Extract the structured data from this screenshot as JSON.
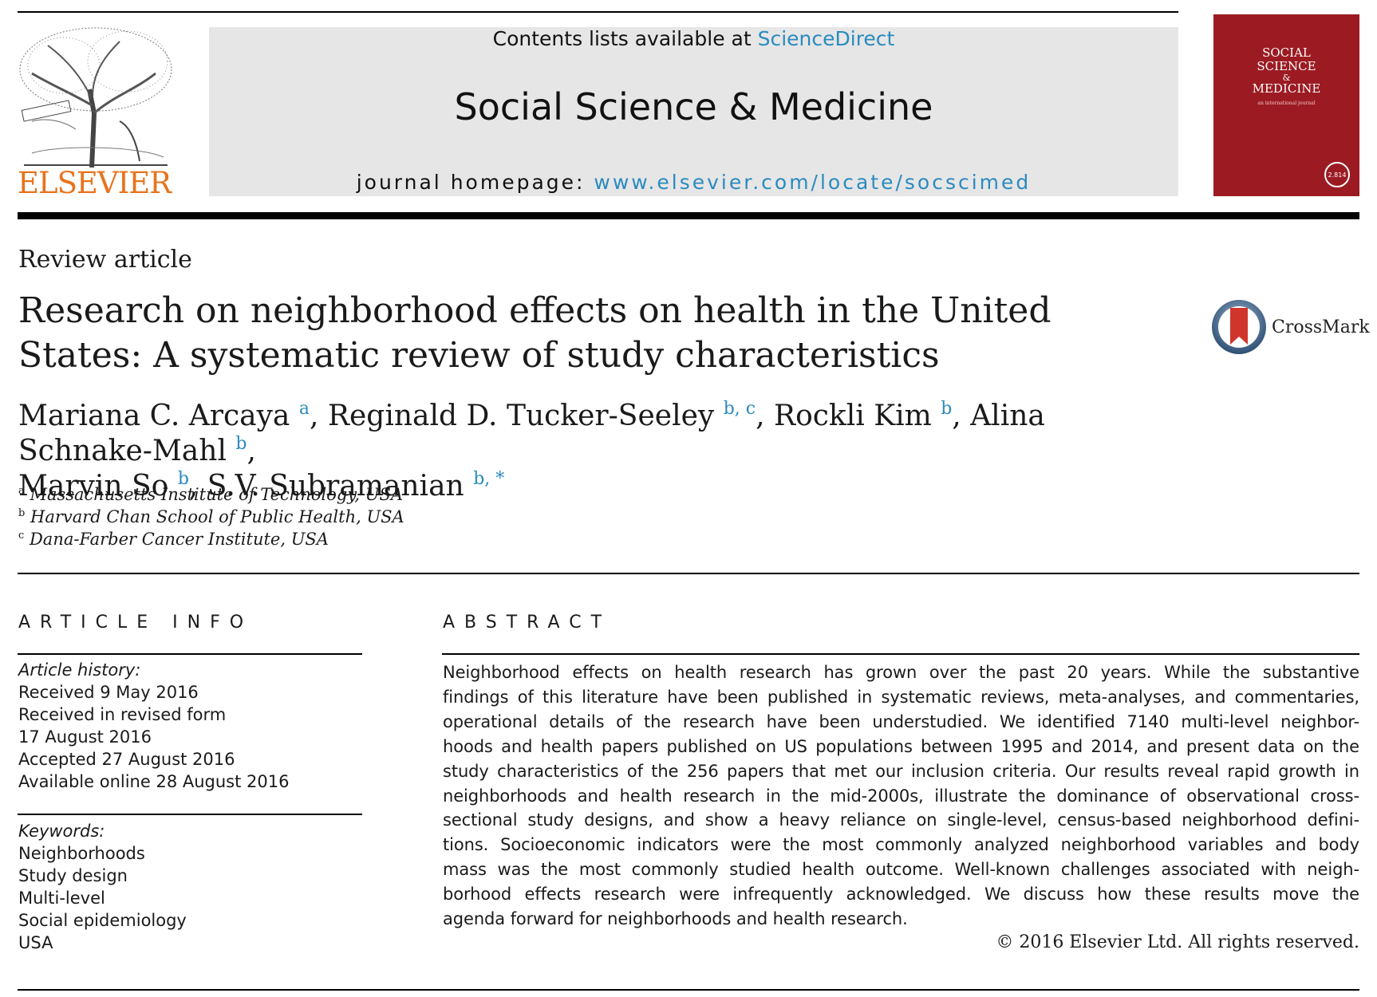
{
  "header": {
    "contents_prefix": "Contents lists available at ",
    "contents_link": "ScienceDirect",
    "journal_title": "Social Science & Medicine",
    "homepage_prefix": "journal homepage: ",
    "homepage_url": "www.elsevier.com/locate/socscimed",
    "publisher": "ELSEVIER",
    "logo_icon": "elsevier-tree-icon",
    "cover": {
      "title_line1": "SOCIAL",
      "title_line2": "SCIENCE",
      "title_line3": "&",
      "title_line4": "MEDICINE",
      "subtitle": "an international journal",
      "impact": "2.814",
      "color": "#9c1b22"
    }
  },
  "article": {
    "type": "Review article",
    "title": "Research on neighborhood effects on health in the United States: A systematic review of study characteristics",
    "crossmark_label": "CrossMark",
    "authors": [
      {
        "name": "Mariana C. Arcaya",
        "sup": "a",
        "sep": ", "
      },
      {
        "name": "Reginald D. Tucker-Seeley",
        "sup": "b, c",
        "sep": ", "
      },
      {
        "name": "Rockli Kim",
        "sup": "b",
        "sep": ", "
      },
      {
        "name": "Alina Schnake-Mahl",
        "sup": "b",
        "sep": ","
      },
      {
        "name": "Marvin So",
        "sup": "b",
        "sep": ", "
      },
      {
        "name": "S.V. Subramanian",
        "sup": "b, *",
        "sep": ""
      }
    ],
    "affiliations": [
      {
        "key": "a",
        "text": "Massachusetts Institute of Technology, USA"
      },
      {
        "key": "b",
        "text": "Harvard Chan School of Public Health, USA"
      },
      {
        "key": "c",
        "text": "Dana-Farber Cancer Institute, USA"
      }
    ]
  },
  "article_info": {
    "heading": "ARTICLE INFO",
    "history_label": "Article history:",
    "history": [
      "Received 9 May 2016",
      "Received in revised form",
      "17 August 2016",
      "Accepted 27 August 2016",
      "Available online 28 August 2016"
    ],
    "keywords_label": "Keywords:",
    "keywords": [
      "Neighborhoods",
      "Study design",
      "Multi-level",
      "Social epidemiology",
      "USA"
    ]
  },
  "abstract": {
    "heading": "ABSTRACT",
    "lines": [
      "Neighborhood effects on health research has grown over the past 20 years. While the substantive",
      "findings of this literature have been published in systematic reviews, meta-analyses, and commentaries,",
      "operational details of the research have been understudied. We identified 7140 multi-level neighbor-",
      "hoods and health papers published on US populations between 1995 and 2014, and present data on the",
      "study characteristics of the 256 papers that met our inclusion criteria. Our results reveal rapid growth in",
      "neighborhoods and health research in the mid-2000s, illustrate the dominance of observational cross-",
      "sectional study designs, and show a heavy reliance on single-level, census-based neighborhood defini-",
      "tions. Socioeconomic indicators were the most commonly analyzed neighborhood variables and body",
      "mass was the most commonly studied health outcome. Well-known challenges associated with neigh-",
      "borhood effects research were infrequently acknowledged. We discuss how these results move the",
      "agenda forward for neighborhoods and health research."
    ],
    "copyright": "© 2016 Elsevier Ltd. All rights reserved."
  },
  "colors": {
    "link": "#2a8bc0",
    "banner": "#e6e6e6",
    "elsevier_orange": "#e8731c"
  }
}
